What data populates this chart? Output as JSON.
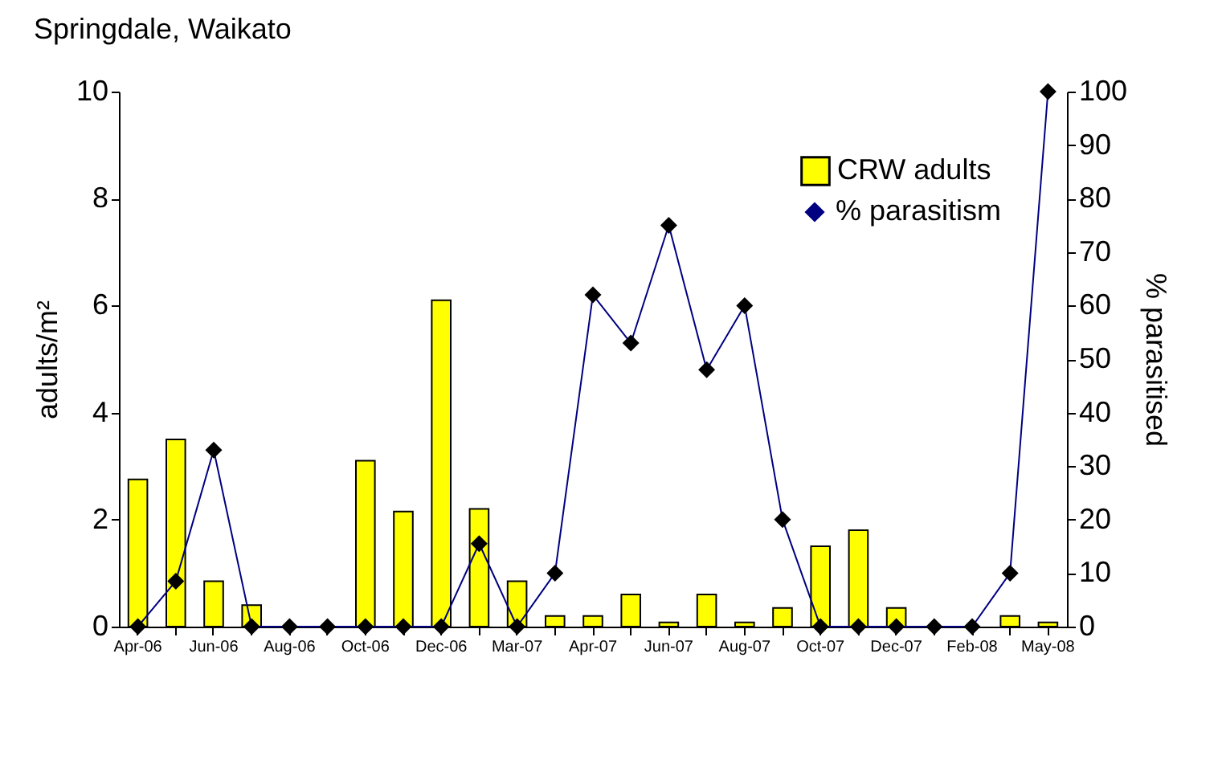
{
  "chart_data": {
    "type": "bar",
    "title": "Springdale, Waikato",
    "ylabel": "adults/m²",
    "y2label": "% parasitised",
    "categories": [
      "Apr-06",
      null,
      "Jun-06",
      null,
      "Aug-06",
      null,
      "Oct-06",
      null,
      "Dec-06",
      null,
      "Mar-07",
      null,
      "Apr-07",
      null,
      "Jun-07",
      null,
      "Aug-07",
      null,
      "Oct-07",
      null,
      "Dec-07",
      null,
      "Feb-08",
      null,
      "May-08"
    ],
    "series": [
      {
        "name": "CRW adults",
        "color": "#ffff00",
        "values": [
          2.75,
          3.5,
          0.85,
          0.4,
          null,
          null,
          3.1,
          2.15,
          6.1,
          2.2,
          0.85,
          0.2,
          0.2,
          0.6,
          0.08,
          0.6,
          0.08,
          0.35,
          1.5,
          1.8,
          0.35,
          null,
          null,
          0.2,
          0.08
        ]
      },
      {
        "name": "% parasitism",
        "type": "line",
        "axis": "y2",
        "color": "#000080",
        "marker": "diamond",
        "values": [
          0,
          8.5,
          33,
          0,
          0,
          0,
          0,
          0,
          0,
          15.5,
          0,
          10,
          62,
          53,
          75,
          48,
          60,
          20,
          0,
          0,
          0,
          0,
          0,
          10,
          100
        ]
      }
    ],
    "ylim": [
      0,
      10
    ],
    "yticks": [
      0,
      2,
      4,
      6,
      8,
      10
    ],
    "y2lim": [
      0,
      100
    ],
    "y2ticks": [
      0,
      10,
      20,
      30,
      40,
      50,
      60,
      70,
      80,
      90,
      100
    ],
    "legend": "top right",
    "grid": false
  }
}
